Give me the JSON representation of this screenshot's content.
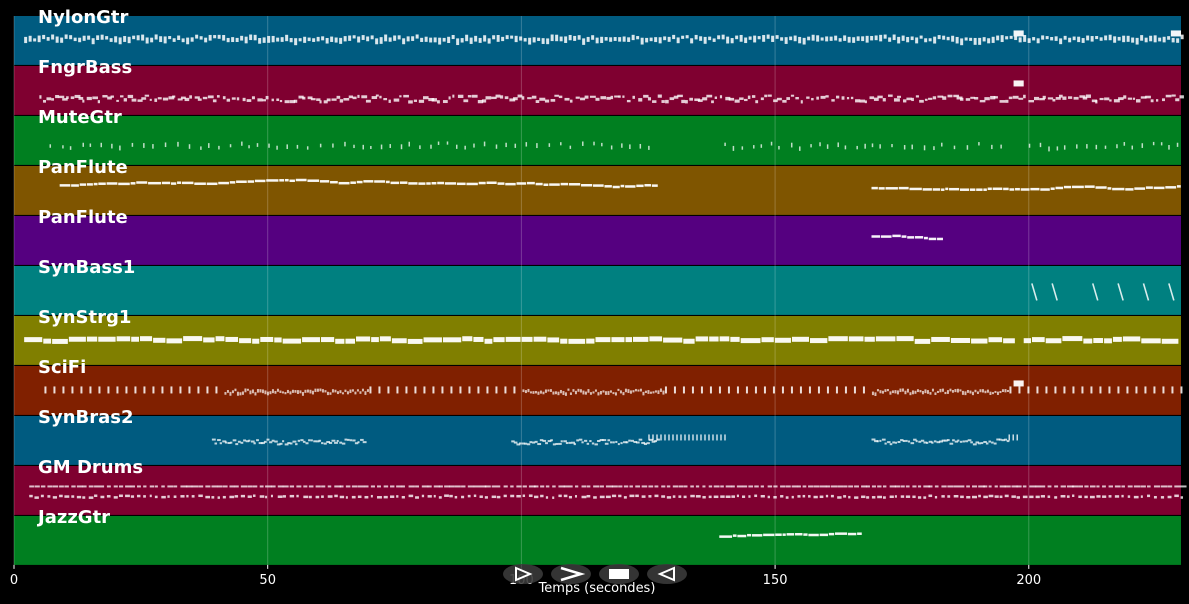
{
  "chart_data": {
    "type": "piano-roll",
    "xlabel": "Temps (secondes)",
    "xlim": [
      0,
      230
    ],
    "xticks": [
      0,
      50,
      100,
      150,
      200
    ],
    "grid": true,
    "tracks": [
      {
        "name": "NylonGtr",
        "color": "#005b80",
        "segments": [
          [
            2,
            230
          ]
        ],
        "pattern": "dense",
        "thick": [
          [
            197,
            199
          ],
          [
            228,
            230
          ]
        ]
      },
      {
        "name": "FngrBass",
        "color": "#7f0030",
        "segments": [
          [
            5,
            230
          ]
        ],
        "pattern": "bass",
        "thick": [
          [
            197,
            199
          ]
        ]
      },
      {
        "name": "MuteGtr",
        "color": "#007f20",
        "segments": [
          [
            7,
            125
          ],
          [
            140,
            195
          ],
          [
            200,
            230
          ]
        ],
        "pattern": "sparse"
      },
      {
        "name": "PanFlute",
        "color": "#7f5500",
        "segments": [
          [
            9,
            127
          ],
          [
            169,
            230
          ]
        ],
        "pattern": "melody"
      },
      {
        "name": "PanFlute",
        "color": "#550080",
        "segments": [
          [
            169,
            183
          ]
        ],
        "pattern": "melody"
      },
      {
        "name": "SynBass1",
        "color": "#008080",
        "segments": [],
        "pattern": "diag",
        "diag": [
          201,
          205,
          213,
          218,
          223,
          228
        ]
      },
      {
        "name": "SynStrg1",
        "color": "#807f00",
        "segments": [
          [
            2,
            196
          ],
          [
            199,
            227
          ]
        ],
        "pattern": "strings"
      },
      {
        "name": "SciFi",
        "color": "#802000",
        "segments": [
          [
            6,
            230
          ]
        ],
        "pattern": "ticks",
        "dense_ranges": [
          [
            40,
            70
          ],
          [
            100,
            128
          ],
          [
            169,
            196
          ]
        ],
        "thick": [
          [
            197,
            199
          ]
        ]
      },
      {
        "name": "SynBras2",
        "color": "#005b80",
        "segments": [
          [
            39,
            69
          ],
          [
            98,
            127
          ],
          [
            169,
            196
          ]
        ],
        "pattern": "brass",
        "ticks": [
          [
            125,
            140
          ],
          [
            196,
            198
          ]
        ]
      },
      {
        "name": "GM Drums",
        "color": "#7f0030",
        "segments": [
          [
            3,
            230
          ]
        ],
        "pattern": "drums"
      },
      {
        "name": "JazzGtr",
        "color": "#007f20",
        "segments": [
          [
            139,
            167
          ]
        ],
        "pattern": "melody"
      }
    ]
  },
  "controls": {
    "buttons": [
      {
        "name": "play-button",
        "icon": "play-icon"
      },
      {
        "name": "forward-button",
        "icon": "forward-icon"
      },
      {
        "name": "stop-button",
        "icon": "stop-icon"
      },
      {
        "name": "rewind-button",
        "icon": "rewind-icon"
      }
    ]
  }
}
